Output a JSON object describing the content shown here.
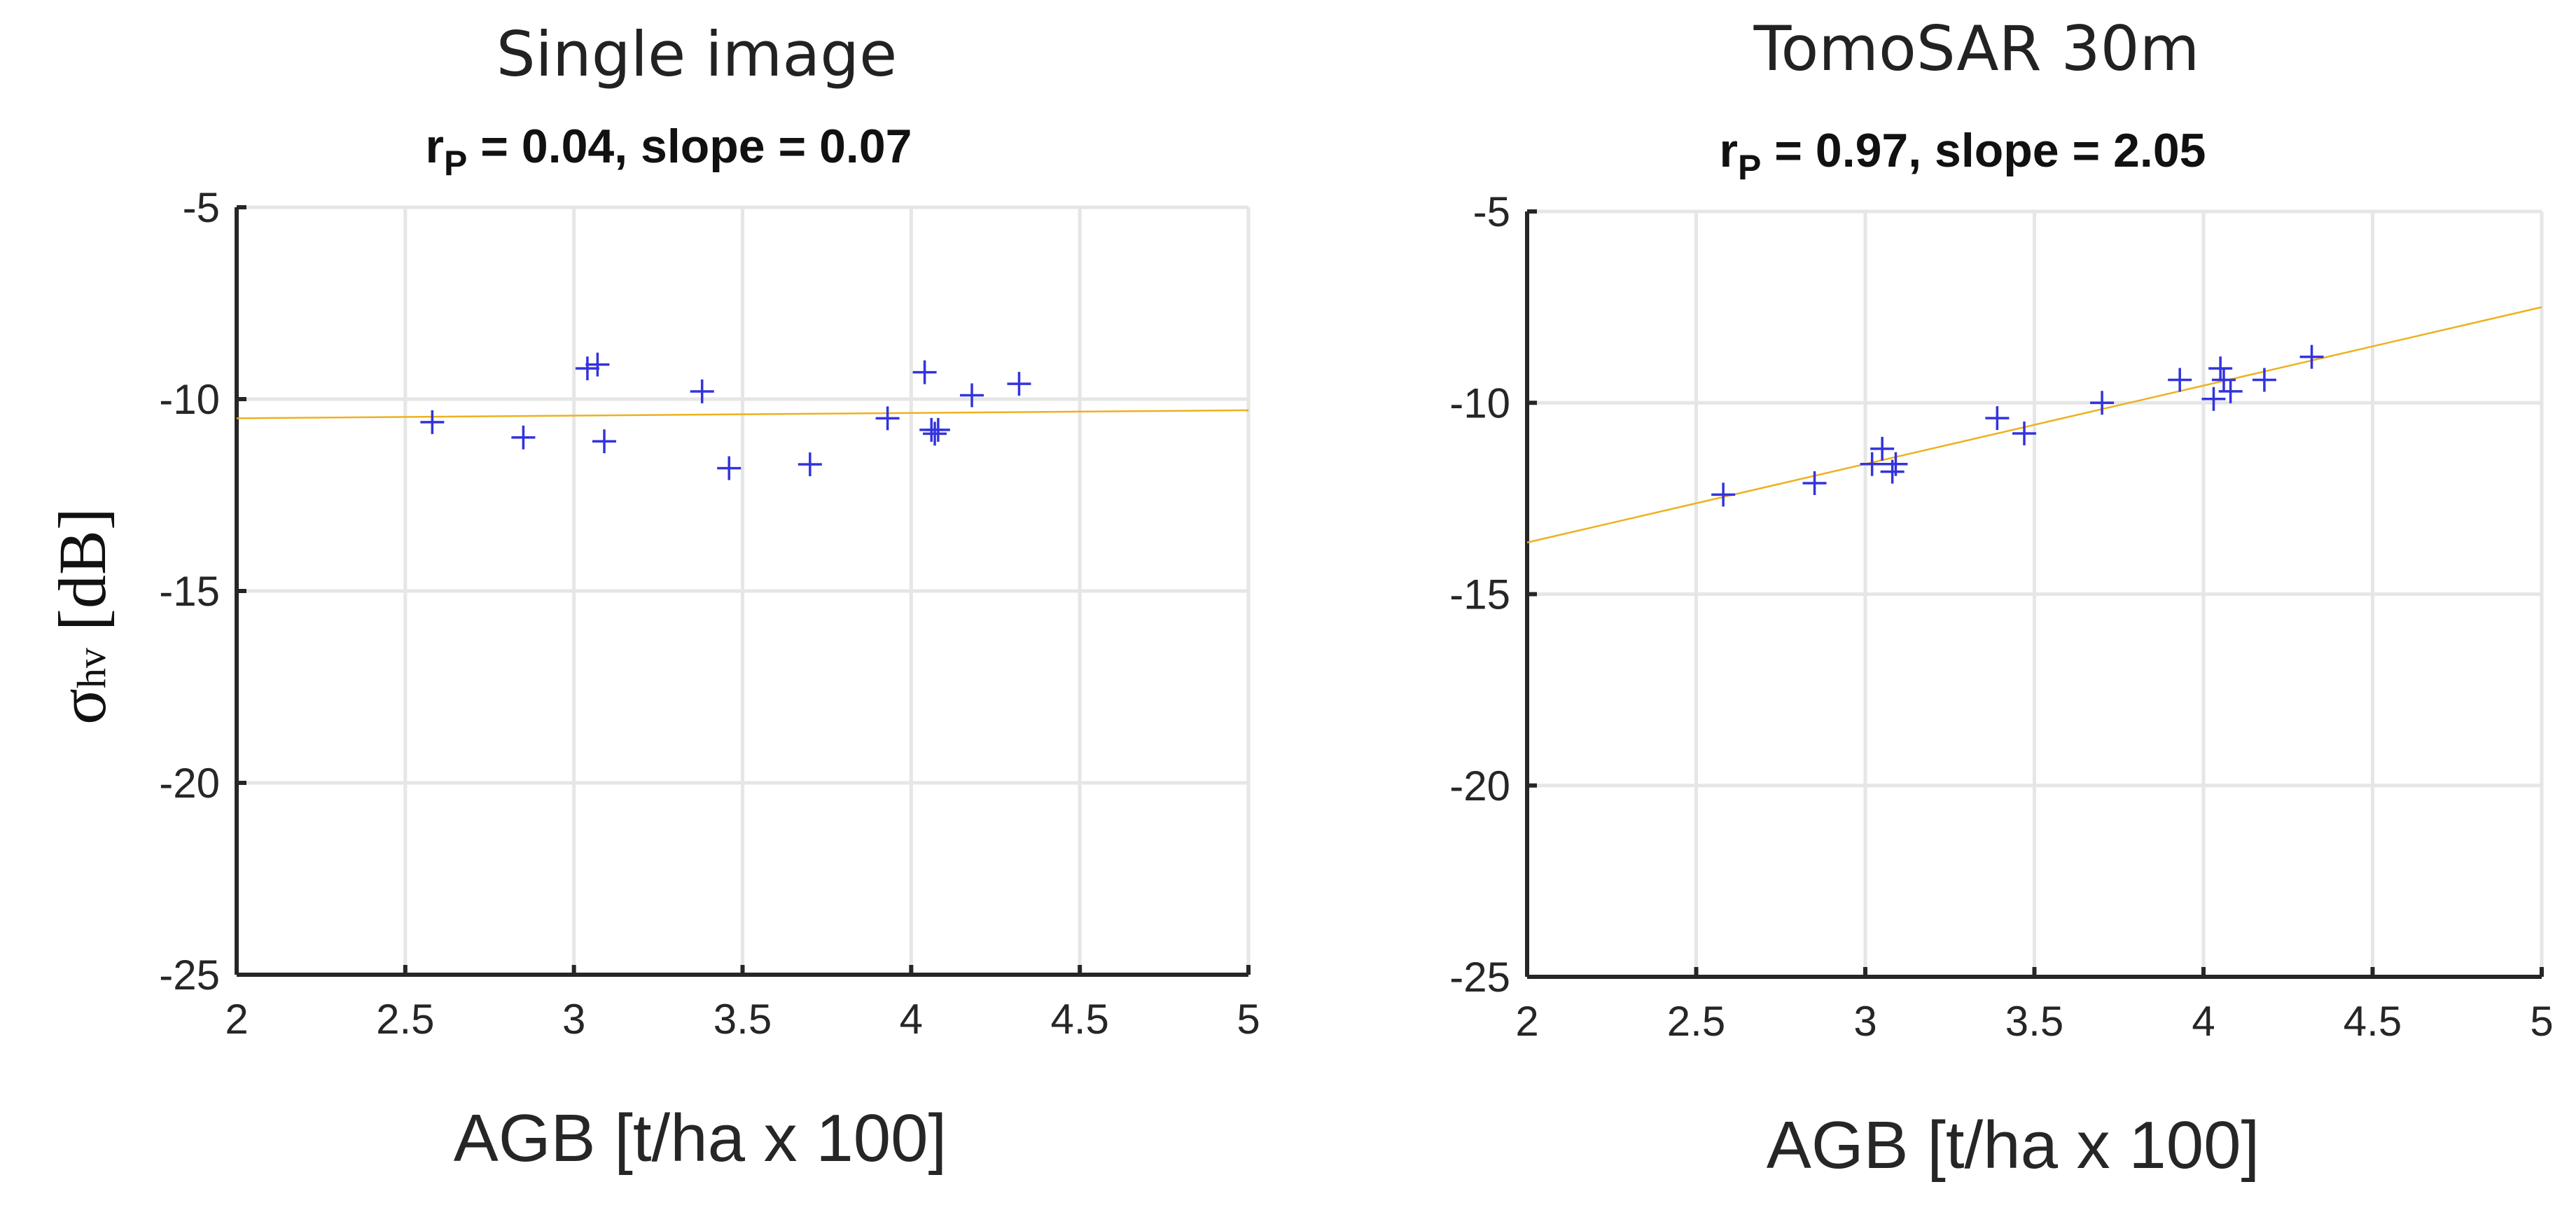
{
  "ylabel": {
    "main": "σ",
    "sub": "hv",
    "unit": " [dB]"
  },
  "colors": {
    "marker": "#3333dd",
    "fit": "#EDB120",
    "grid": "#e6e6e6",
    "axis": "#262626"
  },
  "chart_data": [
    {
      "type": "scatter",
      "title": "Single image",
      "subtitle": {
        "r": "r",
        "index": "P",
        "rest": " = 0.04, slope = 0.07"
      },
      "xlabel": "AGB [t/ha x 100]",
      "ylabel": "σhv [dB]",
      "xlim": [
        2,
        5
      ],
      "ylim": [
        -25,
        -5
      ],
      "xticks": [
        2,
        2.5,
        3,
        3.5,
        4,
        4.5,
        5
      ],
      "xtick_labels": [
        "2",
        "2.5",
        "3",
        "3.5",
        "4",
        "4.5",
        "5"
      ],
      "yticks": [
        -25,
        -20,
        -15,
        -10,
        -5
      ],
      "ytick_labels": [
        "-25",
        "-20",
        "-15",
        "-10",
        "-5"
      ],
      "grid": true,
      "marker": "+",
      "points": [
        [
          2.58,
          -10.6
        ],
        [
          2.85,
          -11.0
        ],
        [
          3.04,
          -9.2
        ],
        [
          3.07,
          -9.1
        ],
        [
          3.09,
          -11.1
        ],
        [
          3.38,
          -9.8
        ],
        [
          3.46,
          -11.8
        ],
        [
          3.7,
          -11.7
        ],
        [
          3.93,
          -10.5
        ],
        [
          4.04,
          -9.3
        ],
        [
          4.06,
          -10.8
        ],
        [
          4.08,
          -10.8
        ],
        [
          4.07,
          -10.9
        ],
        [
          4.18,
          -9.9
        ],
        [
          4.32,
          -9.6
        ]
      ],
      "fit_line": {
        "slope": 0.07,
        "intercept": -10.64
      }
    },
    {
      "type": "scatter",
      "title": "TomoSAR 30m",
      "subtitle": {
        "r": "r",
        "index": "P",
        "rest": " = 0.97, slope = 2.05"
      },
      "xlabel": "AGB [t/ha x 100]",
      "ylabel": "",
      "xlim": [
        2,
        5
      ],
      "ylim": [
        -25,
        -5
      ],
      "xticks": [
        2,
        2.5,
        3,
        3.5,
        4,
        4.5,
        5
      ],
      "xtick_labels": [
        "2",
        "2.5",
        "3",
        "3.5",
        "4",
        "4.5",
        "5"
      ],
      "yticks": [
        -25,
        -20,
        -15,
        -10,
        -5
      ],
      "ytick_labels": [
        "-25",
        "-20",
        "-15",
        "-10",
        "-5"
      ],
      "grid": true,
      "marker": "+",
      "points": [
        [
          2.58,
          -12.4
        ],
        [
          2.85,
          -12.1
        ],
        [
          3.02,
          -11.6
        ],
        [
          3.05,
          -11.2
        ],
        [
          3.08,
          -11.8
        ],
        [
          3.09,
          -11.6
        ],
        [
          3.39,
          -10.4
        ],
        [
          3.47,
          -10.8
        ],
        [
          3.7,
          -10.0
        ],
        [
          3.93,
          -9.4
        ],
        [
          4.03,
          -9.9
        ],
        [
          4.05,
          -9.1
        ],
        [
          4.06,
          -9.4
        ],
        [
          4.08,
          -9.7
        ],
        [
          4.18,
          -9.4
        ],
        [
          4.32,
          -8.8
        ]
      ],
      "fit_line": {
        "slope": 2.05,
        "intercept": -17.75
      }
    }
  ]
}
